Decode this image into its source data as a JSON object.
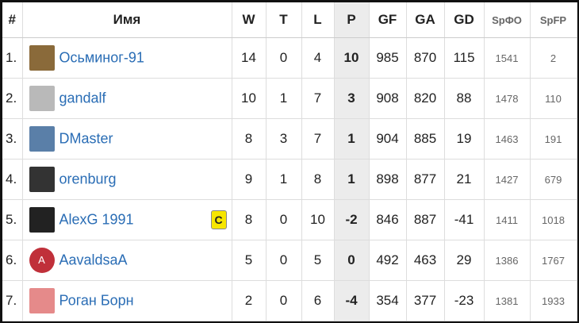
{
  "table": {
    "header": [
      "#",
      "Имя",
      "W",
      "T",
      "L",
      "P",
      "GF",
      "GA",
      "GD",
      "SpФО",
      "SpFP"
    ],
    "rows": [
      {
        "cells": [
          "1.",
          "Осьминог-91",
          14,
          0,
          4,
          10,
          985,
          870,
          115,
          1541,
          2
        ]
      },
      {
        "cells": [
          "2.",
          "gandalf",
          10,
          1,
          7,
          3,
          908,
          820,
          88,
          1478,
          110
        ]
      },
      {
        "cells": [
          "3.",
          "DMaster",
          8,
          3,
          7,
          1,
          904,
          885,
          19,
          1463,
          191
        ]
      },
      {
        "cells": [
          "4.",
          "orenburg",
          9,
          1,
          8,
          1,
          898,
          877,
          21,
          1427,
          679
        ]
      },
      {
        "cells": [
          "5.",
          "AlexG 1991",
          8,
          0,
          10,
          -2,
          846,
          887,
          -41,
          1411,
          1018
        ],
        "badge": "C"
      },
      {
        "cells": [
          "6.",
          "AavaldsaA",
          5,
          0,
          5,
          0,
          492,
          463,
          29,
          1386,
          1767
        ],
        "avatar": "A"
      },
      {
        "cells": [
          "7.",
          "Роган Борн",
          2,
          0,
          6,
          -4,
          354,
          377,
          -23,
          1381,
          1933
        ]
      }
    ]
  }
}
